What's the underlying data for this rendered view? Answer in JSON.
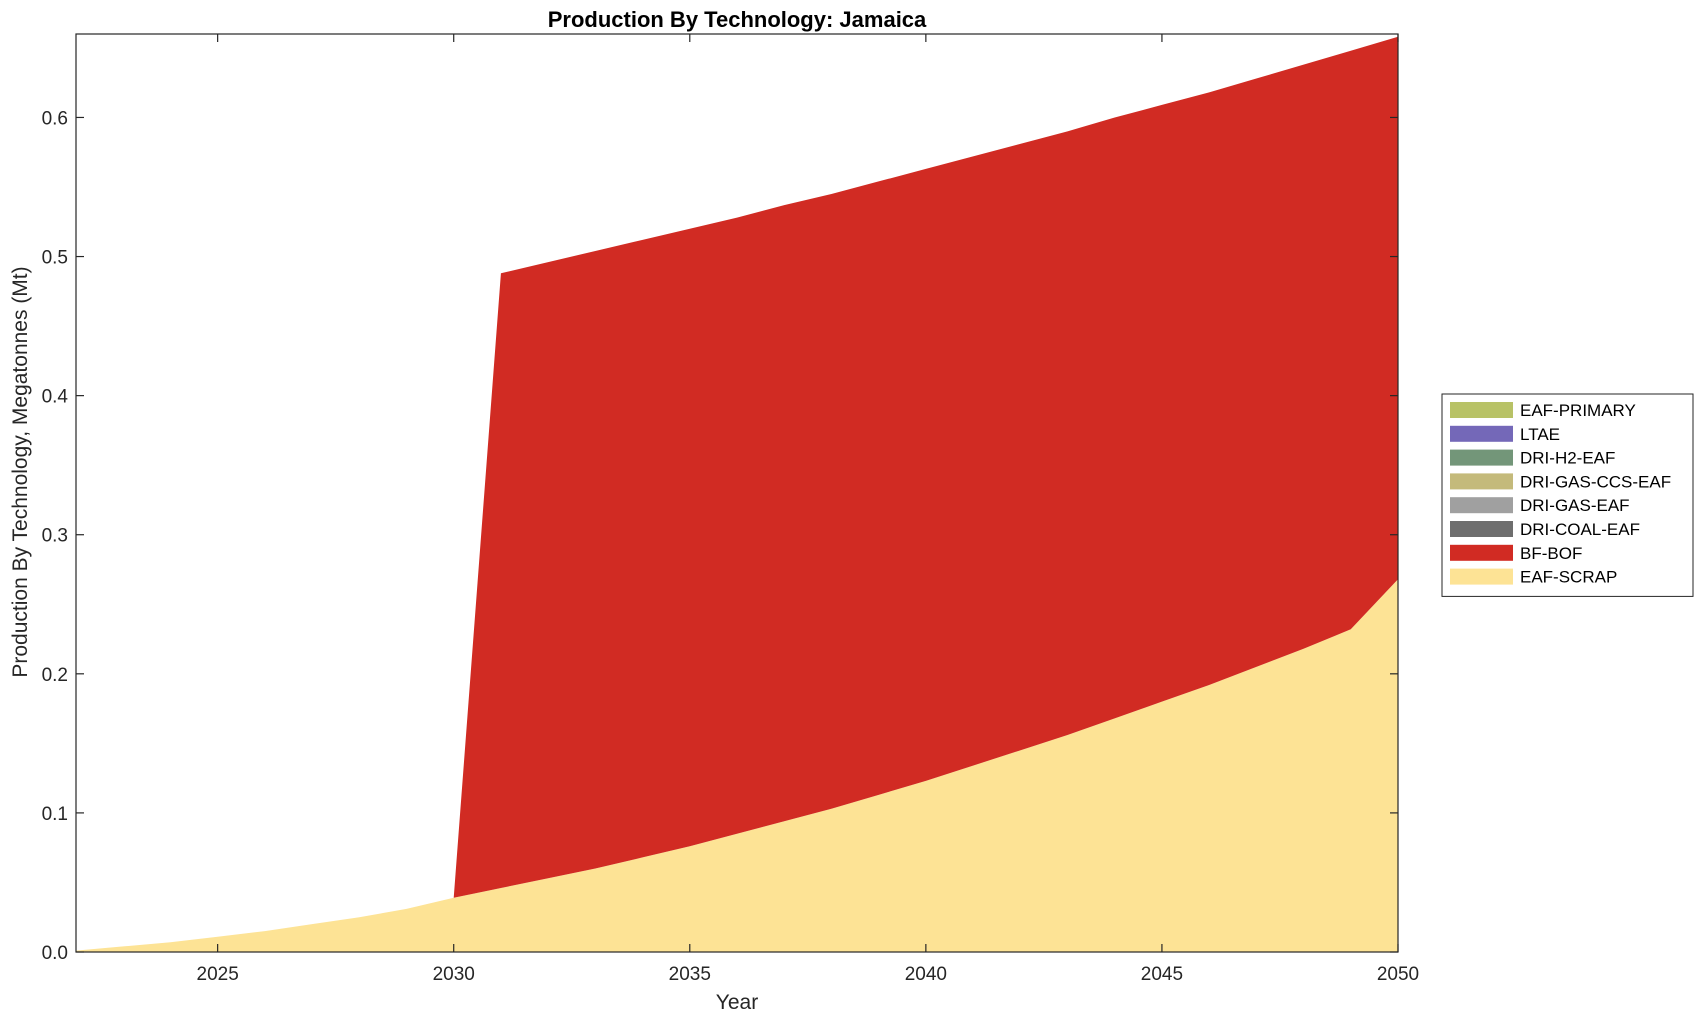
{
  "chart_data": {
    "type": "area",
    "stacked": true,
    "title": "Production By Technology: Jamaica",
    "xlabel": "Year",
    "ylabel": "Production By Technology, Megatonnes (Mt)",
    "xlim": [
      2022,
      2050
    ],
    "ylim": [
      0,
      0.66
    ],
    "xticks": [
      2025,
      2030,
      2035,
      2040,
      2045,
      2050
    ],
    "xtick_labels": [
      "2025",
      "2030",
      "2035",
      "2040",
      "2045",
      "2050"
    ],
    "yticks": [
      0,
      0.1,
      0.2,
      0.3,
      0.4,
      0.5,
      0.6
    ],
    "ytick_labels": [
      "0.0",
      "0.1",
      "0.2",
      "0.3",
      "0.4",
      "0.5",
      "0.6"
    ],
    "grid": false,
    "legend_position": "right",
    "x": [
      2022,
      2023,
      2024,
      2025,
      2026,
      2027,
      2028,
      2029,
      2030,
      2031,
      2032,
      2033,
      2034,
      2035,
      2036,
      2037,
      2038,
      2039,
      2040,
      2041,
      2042,
      2043,
      2044,
      2045,
      2046,
      2047,
      2048,
      2049,
      2050
    ],
    "series": [
      {
        "name": "EAF-SCRAP",
        "color": "#fde395",
        "values": [
          0.001,
          0.004,
          0.007,
          0.011,
          0.015,
          0.02,
          0.025,
          0.031,
          0.039,
          0.046,
          0.053,
          0.06,
          0.068,
          0.076,
          0.085,
          0.094,
          0.103,
          0.113,
          0.123,
          0.134,
          0.145,
          0.156,
          0.168,
          0.18,
          0.192,
          0.205,
          0.218,
          0.232,
          0.268
        ]
      },
      {
        "name": "BF-BOF",
        "color": "#d12b23",
        "values": [
          0,
          0,
          0,
          0,
          0,
          0,
          0,
          0,
          0,
          0.442,
          0.443,
          0.444,
          0.444,
          0.444,
          0.443,
          0.443,
          0.442,
          0.441,
          0.44,
          0.438,
          0.436,
          0.434,
          0.432,
          0.429,
          0.426,
          0.423,
          0.42,
          0.416,
          0.39
        ]
      },
      {
        "name": "DRI-COAL-EAF",
        "color": "#6e6e6e",
        "values": [
          0,
          0,
          0,
          0,
          0,
          0,
          0,
          0,
          0,
          0,
          0,
          0,
          0,
          0,
          0,
          0,
          0,
          0,
          0,
          0,
          0,
          0,
          0,
          0,
          0,
          0,
          0,
          0,
          0
        ]
      },
      {
        "name": "DRI-GAS-EAF",
        "color": "#a0a0a0",
        "values": [
          0,
          0,
          0,
          0,
          0,
          0,
          0,
          0,
          0,
          0,
          0,
          0,
          0,
          0,
          0,
          0,
          0,
          0,
          0,
          0,
          0,
          0,
          0,
          0,
          0,
          0,
          0,
          0,
          0
        ]
      },
      {
        "name": "DRI-GAS-CCS-EAF",
        "color": "#c4ba7b",
        "values": [
          0,
          0,
          0,
          0,
          0,
          0,
          0,
          0,
          0,
          0,
          0,
          0,
          0,
          0,
          0,
          0,
          0,
          0,
          0,
          0,
          0,
          0,
          0,
          0,
          0,
          0,
          0,
          0,
          0
        ]
      },
      {
        "name": "DRI-H2-EAF",
        "color": "#739679",
        "values": [
          0,
          0,
          0,
          0,
          0,
          0,
          0,
          0,
          0,
          0,
          0,
          0,
          0,
          0,
          0,
          0,
          0,
          0,
          0,
          0,
          0,
          0,
          0,
          0,
          0,
          0,
          0,
          0,
          0
        ]
      },
      {
        "name": "LTAE",
        "color": "#7468b8",
        "values": [
          0,
          0,
          0,
          0,
          0,
          0,
          0,
          0,
          0,
          0,
          0,
          0,
          0,
          0,
          0,
          0,
          0,
          0,
          0,
          0,
          0,
          0,
          0,
          0,
          0,
          0,
          0,
          0,
          0
        ]
      },
      {
        "name": "EAF-PRIMARY",
        "color": "#b8c266",
        "values": [
          0,
          0,
          0,
          0,
          0,
          0,
          0,
          0,
          0,
          0,
          0,
          0,
          0,
          0,
          0,
          0,
          0,
          0,
          0,
          0,
          0,
          0,
          0,
          0,
          0,
          0,
          0,
          0,
          0
        ]
      }
    ],
    "legend_order": [
      "EAF-PRIMARY",
      "LTAE",
      "DRI-H2-EAF",
      "DRI-GAS-CCS-EAF",
      "DRI-GAS-EAF",
      "DRI-COAL-EAF",
      "BF-BOF",
      "EAF-SCRAP"
    ]
  }
}
